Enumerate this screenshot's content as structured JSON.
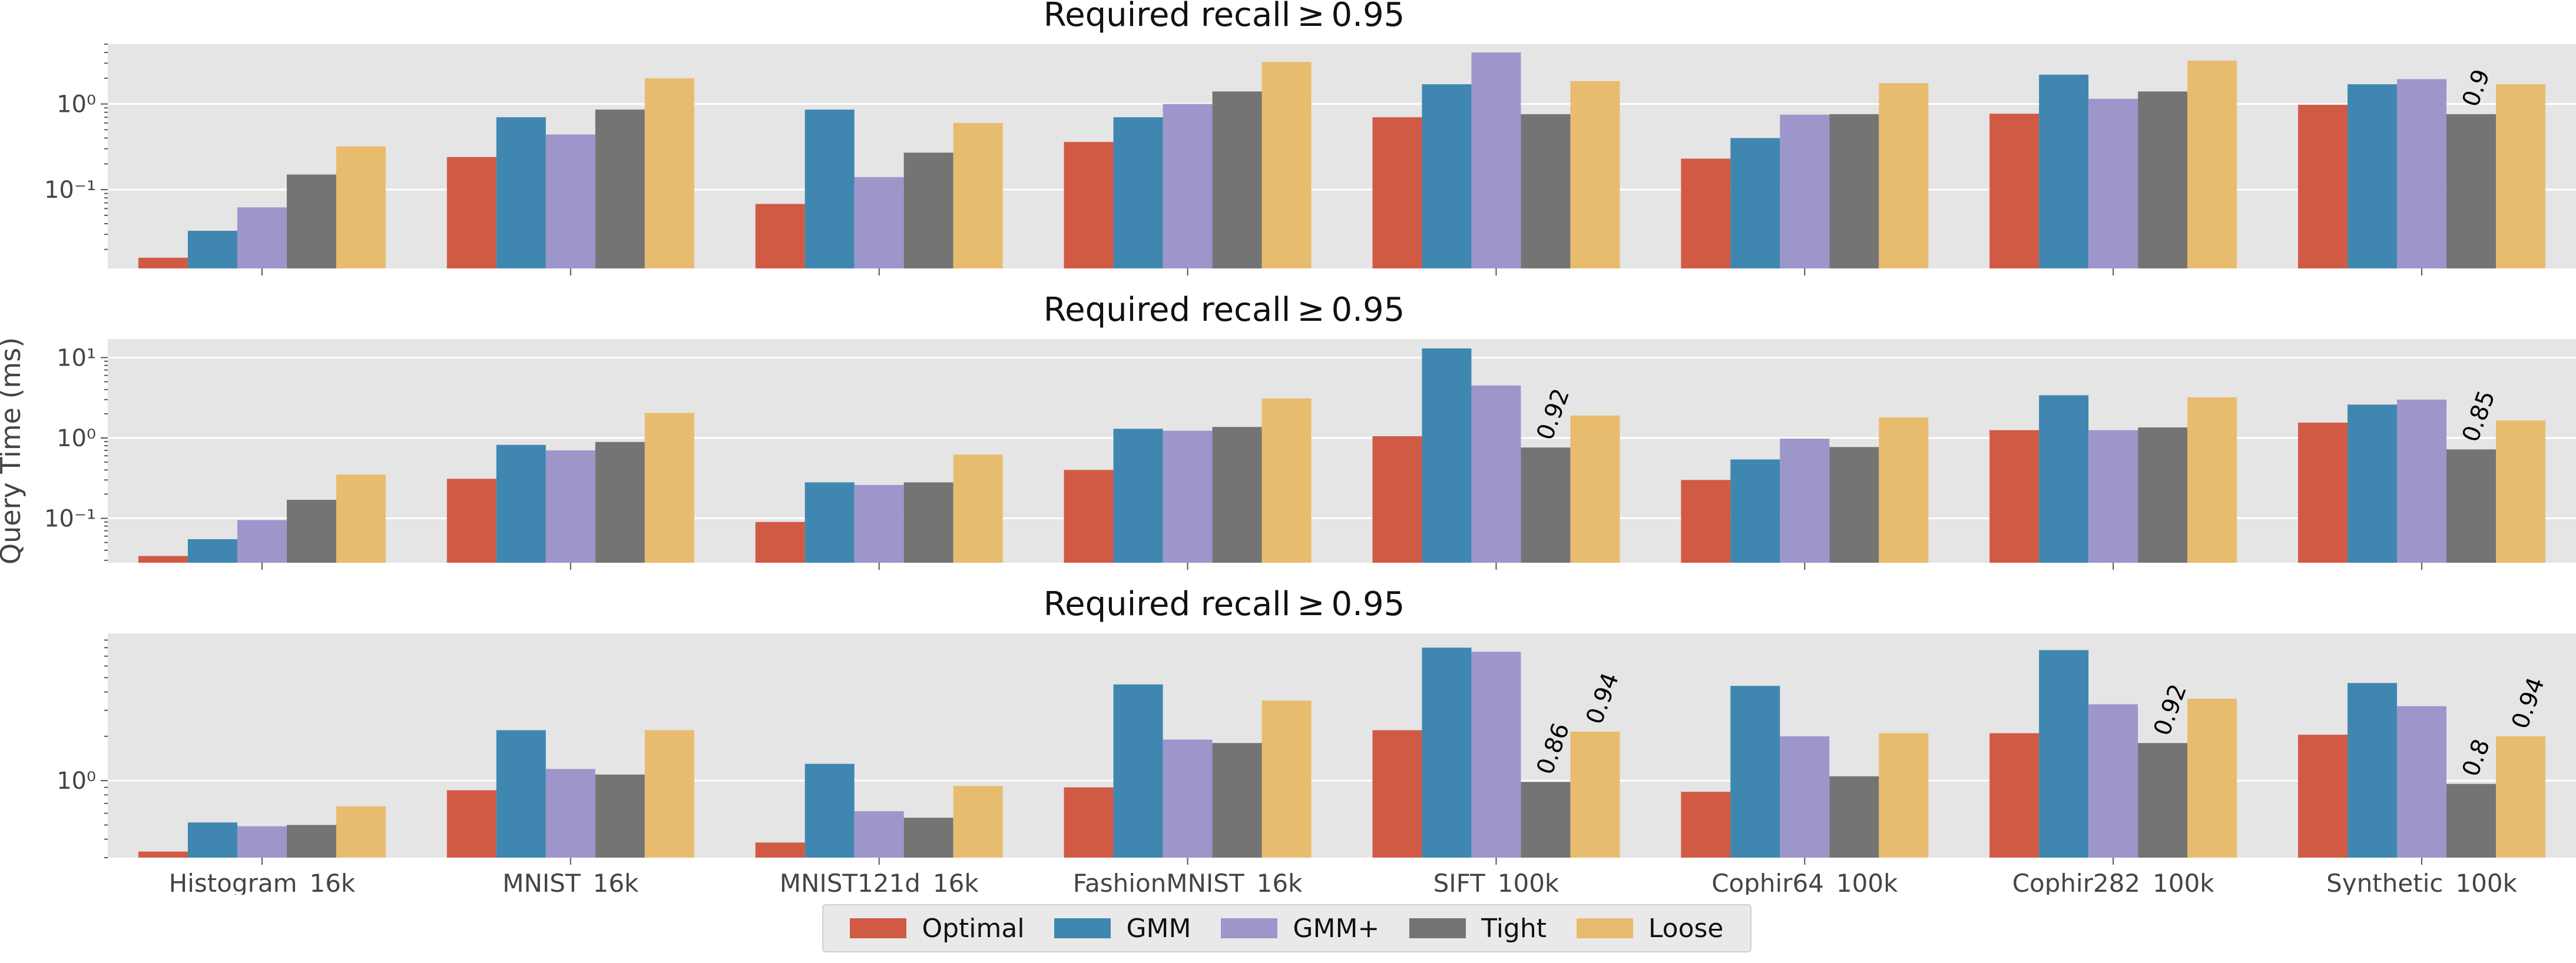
{
  "ylabel": "Query Time (ms)",
  "legend": {
    "items": [
      {
        "name": "Optimal",
        "color": "#d15a45"
      },
      {
        "name": "GMM",
        "color": "#3f87b0"
      },
      {
        "name": "GMM+",
        "color": "#9d96cb"
      },
      {
        "name": "Tight",
        "color": "#747474"
      },
      {
        "name": "Loose",
        "color": "#e8bc6e"
      }
    ]
  },
  "chart_data": [
    {
      "type": "bar",
      "title": "Required recall ≥ 0.95",
      "ylabel": "",
      "yscale": "log",
      "ylim": [
        0.012,
        5
      ],
      "yticks": [
        {
          "value": 0.1,
          "label": "10⁻¹"
        },
        {
          "value": 1,
          "label": "10⁰"
        }
      ],
      "grid": true,
      "categories": [
        "Histogram_16k",
        "MNIST_16k",
        "MNIST121d_16k",
        "FashionMNIST_16k",
        "SIFT_100k",
        "Cophir64_100k",
        "Cophir282_100k",
        "Synthetic_100k"
      ],
      "series": [
        {
          "name": "Optimal",
          "values": [
            0.016,
            0.24,
            0.068,
            0.36,
            0.7,
            0.23,
            0.77,
            0.98
          ]
        },
        {
          "name": "GMM",
          "values": [
            0.033,
            0.7,
            0.86,
            0.7,
            1.7,
            0.4,
            2.2,
            1.7
          ]
        },
        {
          "name": "GMM+",
          "values": [
            0.062,
            0.44,
            0.14,
            1.0,
            4.0,
            0.75,
            1.15,
            1.95
          ]
        },
        {
          "name": "Tight",
          "values": [
            0.15,
            0.86,
            0.27,
            1.4,
            0.76,
            0.76,
            1.4,
            0.76
          ]
        },
        {
          "name": "Loose",
          "values": [
            0.32,
            2.0,
            0.6,
            3.1,
            1.85,
            1.75,
            3.2,
            1.7
          ]
        }
      ],
      "annotations": [
        {
          "category": "Synthetic_100k",
          "series": "Tight",
          "text": "0.9"
        }
      ]
    },
    {
      "type": "bar",
      "title": "Required recall ≥ 0.95",
      "ylabel": "",
      "yscale": "log",
      "ylim": [
        0.028,
        17
      ],
      "yticks": [
        {
          "value": 0.1,
          "label": "10⁻¹"
        },
        {
          "value": 1,
          "label": "10⁰"
        },
        {
          "value": 10,
          "label": "10¹"
        }
      ],
      "grid": true,
      "categories": [
        "Histogram_16k",
        "MNIST_16k",
        "MNIST121d_16k",
        "FashionMNIST_16k",
        "SIFT_100k",
        "Cophir64_100k",
        "Cophir282_100k",
        "Synthetic_100k"
      ],
      "series": [
        {
          "name": "Optimal",
          "values": [
            0.034,
            0.31,
            0.09,
            0.4,
            1.05,
            0.3,
            1.25,
            1.55
          ]
        },
        {
          "name": "GMM",
          "values": [
            0.055,
            0.82,
            0.28,
            1.3,
            13.0,
            0.54,
            3.4,
            2.6
          ]
        },
        {
          "name": "GMM+",
          "values": [
            0.095,
            0.7,
            0.26,
            1.23,
            4.5,
            0.98,
            1.25,
            3.0
          ]
        },
        {
          "name": "Tight",
          "values": [
            0.17,
            0.89,
            0.28,
            1.37,
            0.76,
            0.77,
            1.35,
            0.72
          ]
        },
        {
          "name": "Loose",
          "values": [
            0.35,
            2.05,
            0.62,
            3.1,
            1.9,
            1.8,
            3.2,
            1.65
          ]
        }
      ],
      "annotations": [
        {
          "category": "SIFT_100k",
          "series": "Tight",
          "text": "0.92"
        },
        {
          "category": "Synthetic_100k",
          "series": "Tight",
          "text": "0.85"
        }
      ]
    },
    {
      "type": "bar",
      "title": "Required recall ≥ 0.95",
      "ylabel": "",
      "yscale": "log",
      "ylim": [
        0.3,
        10
      ],
      "yticks": [
        {
          "value": 1,
          "label": "10⁰"
        }
      ],
      "grid": true,
      "categories": [
        "Histogram_16k",
        "MNIST_16k",
        "MNIST121d_16k",
        "FashionMNIST_16k",
        "SIFT_100k",
        "Cophir64_100k",
        "Cophir282_100k",
        "Synthetic_100k"
      ],
      "series": [
        {
          "name": "Optimal",
          "values": [
            0.33,
            0.86,
            0.38,
            0.9,
            2.2,
            0.84,
            2.1,
            2.05
          ]
        },
        {
          "name": "GMM",
          "values": [
            0.52,
            2.2,
            1.3,
            4.5,
            8.0,
            4.4,
            7.7,
            4.6
          ]
        },
        {
          "name": "GMM+",
          "values": [
            0.49,
            1.2,
            0.62,
            1.9,
            7.5,
            2.0,
            3.3,
            3.2
          ]
        },
        {
          "name": "Tight",
          "values": [
            0.5,
            1.1,
            0.56,
            1.8,
            0.98,
            1.07,
            1.8,
            0.95
          ]
        },
        {
          "name": "Loose",
          "values": [
            0.67,
            2.2,
            0.92,
            3.5,
            2.15,
            2.1,
            3.6,
            2.0
          ]
        }
      ],
      "annotations": [
        {
          "category": "SIFT_100k",
          "series": "Tight",
          "text": "0.86"
        },
        {
          "category": "SIFT_100k",
          "series": "Loose",
          "text": "0.94"
        },
        {
          "category": "Cophir282_100k",
          "series": "Tight",
          "text": "0.92"
        },
        {
          "category": "Synthetic_100k",
          "series": "Tight",
          "text": "0.8"
        },
        {
          "category": "Synthetic_100k",
          "series": "Loose",
          "text": "0.94"
        }
      ]
    }
  ]
}
